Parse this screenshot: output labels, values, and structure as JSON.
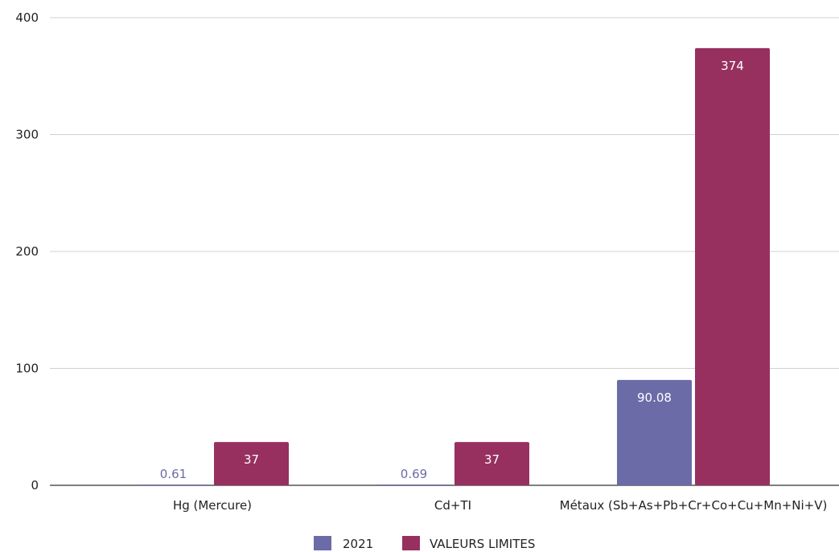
{
  "chart_data": {
    "type": "bar",
    "categories": [
      "Hg (Mercure)",
      "Cd+TI",
      "Métaux (Sb+As+Pb+Cr+Co+Cu+Mn+Ni+V)"
    ],
    "series": [
      {
        "name": "2021",
        "values": [
          0.61,
          0.69,
          90.08
        ],
        "labels": [
          "0.61",
          "0.69",
          "90.08"
        ],
        "color": "#6b6ba8"
      },
      {
        "name": "VALEURS LIMITES",
        "values": [
          37,
          37,
          374
        ],
        "labels": [
          "37",
          "37",
          "374"
        ],
        "color": "#97305f"
      }
    ],
    "yticks": [
      "0",
      "100",
      "200",
      "300",
      "400"
    ],
    "ylim": [
      0,
      400
    ],
    "grid": true,
    "legend_position": "bottom-center",
    "title": "",
    "xlabel": "",
    "ylabel": ""
  }
}
